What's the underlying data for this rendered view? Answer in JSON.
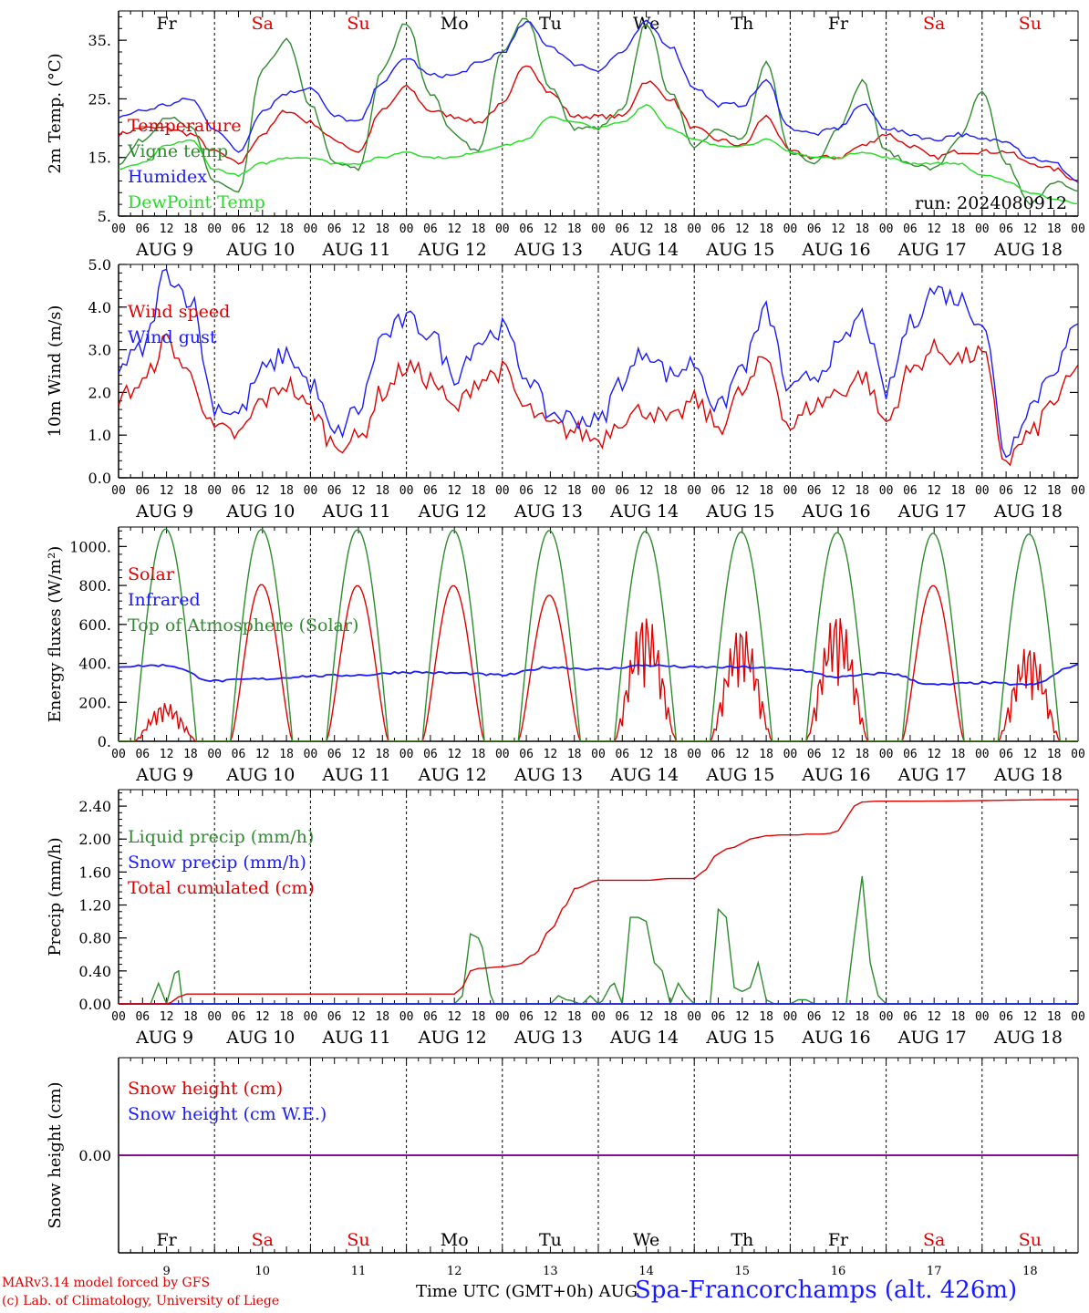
{
  "days": [
    "Fr",
    "Sa",
    "Su",
    "Mo",
    "Tu",
    "We",
    "Th",
    "Fr",
    "Sa",
    "Su"
  ],
  "day_colors": [
    "#000000",
    "#e00000",
    "#e00000",
    "#000000",
    "#000000",
    "#000000",
    "#000000",
    "#000000",
    "#e00000",
    "#e00000"
  ],
  "date_labels": [
    "AUG  9",
    "AUG 10",
    "AUG 11",
    "AUG 12",
    "AUG 13",
    "AUG 14",
    "AUG 15",
    "AUG 16",
    "AUG 17",
    "AUG 18"
  ],
  "bottom_date_labels": [
    "9",
    "10",
    "11",
    "12",
    "13",
    "14",
    "15",
    "16",
    "17",
    "18"
  ],
  "hour_labels": [
    "00",
    "06",
    "12",
    "18"
  ],
  "footer": {
    "model": "MARv3.14 model forced by GFS",
    "lab": "(c) Lab. of Climatology, University of Liege",
    "xlabel": "Time UTC (GMT+0h) AUG",
    "station": "Spa-Francorchamps (alt. 426m)"
  },
  "chart_data": [
    {
      "type": "line",
      "ylabel": "2m Temp. (°C)",
      "ylim": [
        5,
        40
      ],
      "yticks": [
        "5.",
        "15.",
        "25.",
        "35."
      ],
      "ytick_values": [
        5,
        15,
        25,
        35
      ],
      "annotation": "run: 2024080912",
      "x_unit": "hours since Aug 9 00 UTC",
      "series": [
        {
          "name": "Temperature",
          "color": "#e00000",
          "x": [
            0,
            6,
            12,
            18,
            24,
            30,
            36,
            42,
            48,
            54,
            60,
            66,
            72,
            78,
            84,
            90,
            96,
            102,
            108,
            114,
            120,
            126,
            132,
            138,
            144,
            150,
            156,
            162,
            168,
            174,
            180,
            186,
            192,
            198,
            204,
            210,
            216,
            222,
            228,
            234,
            240
          ],
          "values": [
            19,
            20,
            20,
            19,
            16,
            14,
            19,
            23,
            21,
            18,
            16,
            23,
            27,
            23,
            22,
            21,
            24,
            31,
            26,
            22,
            22,
            22,
            28,
            25,
            20,
            18,
            17,
            22,
            16,
            15,
            15,
            17,
            19,
            17,
            15,
            16,
            16,
            16,
            14,
            13,
            11
          ]
        },
        {
          "name": "Vigne temp",
          "color": "#2e8b2e",
          "x": [
            0,
            6,
            12,
            18,
            24,
            30,
            36,
            42,
            48,
            54,
            60,
            66,
            72,
            78,
            84,
            90,
            96,
            102,
            108,
            114,
            120,
            126,
            132,
            138,
            144,
            150,
            156,
            162,
            168,
            174,
            180,
            186,
            192,
            198,
            204,
            210,
            216,
            222,
            228,
            234,
            240
          ],
          "values": [
            14,
            18,
            22,
            20,
            11,
            9,
            30,
            35,
            24,
            14,
            13,
            30,
            38,
            26,
            19,
            16,
            33,
            39,
            27,
            20,
            20,
            23,
            38,
            26,
            17,
            20,
            18,
            31,
            16,
            14,
            20,
            28,
            16,
            14,
            13,
            18,
            26,
            14,
            7,
            11,
            9
          ]
        },
        {
          "name": "Humidex",
          "color": "#1a1aff",
          "x": [
            0,
            6,
            12,
            18,
            24,
            30,
            36,
            42,
            48,
            54,
            60,
            66,
            72,
            78,
            84,
            90,
            96,
            102,
            108,
            114,
            120,
            126,
            132,
            138,
            144,
            150,
            156,
            162,
            168,
            174,
            180,
            186,
            192,
            198,
            204,
            210,
            216,
            222,
            228,
            234,
            240
          ],
          "values": [
            22,
            23,
            24,
            25,
            20,
            16,
            23,
            26,
            27,
            22,
            21,
            28,
            32,
            29,
            29,
            31,
            33,
            38,
            34,
            31,
            30,
            33,
            38,
            34,
            27,
            24,
            24,
            28,
            20,
            19,
            20,
            24,
            20,
            19,
            18,
            19,
            18,
            18,
            15,
            14,
            11
          ]
        },
        {
          "name": "DewPoint Temp",
          "color": "#22dd22",
          "x": [
            0,
            6,
            12,
            18,
            24,
            30,
            36,
            42,
            48,
            54,
            60,
            66,
            72,
            78,
            84,
            90,
            96,
            102,
            108,
            114,
            120,
            126,
            132,
            138,
            144,
            150,
            156,
            162,
            168,
            174,
            180,
            186,
            192,
            198,
            204,
            210,
            216,
            222,
            228,
            234,
            240
          ],
          "values": [
            13,
            14,
            17,
            18,
            13,
            12,
            14,
            15,
            15,
            14,
            14,
            15,
            16,
            15,
            15,
            16,
            17,
            18,
            22,
            21,
            20,
            21,
            24,
            20,
            18,
            17,
            17,
            18,
            16,
            15,
            15,
            16,
            15,
            14,
            14,
            14,
            12,
            11,
            9,
            8,
            7
          ]
        }
      ]
    },
    {
      "type": "line",
      "ylabel": "10m Wind (m/s)",
      "ylim": [
        0,
        5
      ],
      "yticks": [
        "0.0",
        "1.0",
        "2.0",
        "3.0",
        "4.0",
        "5.0"
      ],
      "ytick_values": [
        0,
        1,
        2,
        3,
        4,
        5
      ],
      "x_unit": "hours since Aug 9 00 UTC",
      "series": [
        {
          "name": "Wind speed",
          "color": "#e00000",
          "x": [
            0,
            6,
            12,
            18,
            24,
            30,
            36,
            42,
            48,
            54,
            60,
            66,
            72,
            78,
            84,
            90,
            96,
            102,
            108,
            114,
            120,
            126,
            132,
            138,
            144,
            150,
            156,
            162,
            168,
            174,
            180,
            186,
            192,
            198,
            204,
            210,
            216,
            222,
            228,
            234,
            240
          ],
          "values": [
            1.9,
            2.2,
            3.2,
            2.4,
            1.1,
            1.0,
            1.8,
            2.2,
            1.6,
            0.8,
            0.9,
            2.0,
            2.6,
            2.3,
            1.6,
            2.3,
            2.5,
            1.6,
            1.2,
            1.1,
            0.9,
            1.4,
            1.6,
            1.3,
            1.8,
            1.2,
            2.0,
            2.8,
            1.2,
            1.7,
            2.0,
            2.4,
            1.3,
            2.5,
            3.0,
            2.8,
            2.9,
            0.4,
            1.0,
            1.8,
            2.5
          ]
        },
        {
          "name": "Wind gust",
          "color": "#1a1aff",
          "x": [
            0,
            6,
            12,
            18,
            24,
            30,
            36,
            42,
            48,
            54,
            60,
            66,
            72,
            78,
            84,
            90,
            96,
            102,
            108,
            114,
            120,
            126,
            132,
            138,
            144,
            150,
            156,
            162,
            168,
            174,
            180,
            186,
            192,
            198,
            204,
            210,
            216,
            222,
            228,
            234,
            240
          ],
          "values": [
            2.6,
            3.0,
            4.8,
            4.2,
            1.7,
            1.5,
            2.5,
            2.9,
            2.2,
            1.0,
            1.6,
            3.3,
            3.7,
            3.4,
            2.4,
            3.2,
            3.5,
            2.4,
            1.5,
            1.4,
            1.3,
            2.3,
            3.0,
            2.4,
            2.7,
            1.6,
            2.6,
            3.9,
            2.0,
            2.4,
            3.0,
            3.8,
            2.0,
            3.6,
            4.4,
            4.2,
            3.7,
            0.6,
            1.7,
            2.6,
            3.5
          ]
        }
      ]
    },
    {
      "type": "line",
      "ylabel": "Energy fluxes (W/m²)",
      "ylim": [
        0,
        1100
      ],
      "yticks": [
        "0.",
        "200.",
        "400.",
        "600.",
        "800.",
        "1000."
      ],
      "ytick_values": [
        0,
        200,
        400,
        600,
        800,
        1000
      ],
      "x_unit": "hours since Aug 9 00 UTC",
      "series": [
        {
          "name": "Solar",
          "color": "#e00000",
          "peaks": [
            200,
            805,
            800,
            800,
            750,
            660,
            600,
            670,
            800,
            500
          ]
        },
        {
          "name": "Infrared",
          "color": "#1a1aff",
          "x": [
            0,
            12,
            24,
            36,
            48,
            60,
            72,
            84,
            96,
            108,
            120,
            132,
            144,
            156,
            168,
            180,
            192,
            204,
            216,
            228,
            240
          ],
          "values": [
            385,
            390,
            310,
            320,
            335,
            340,
            355,
            350,
            340,
            380,
            370,
            390,
            380,
            380,
            370,
            330,
            350,
            290,
            300,
            290,
            390
          ]
        },
        {
          "name": "Top of Atmosphere (Solar)",
          "color": "#2e8b2e",
          "peaks": [
            1090,
            1088,
            1086,
            1084,
            1082,
            1078,
            1075,
            1072,
            1068,
            1064
          ]
        }
      ]
    },
    {
      "type": "line",
      "ylabel": "Precip (mm/h)",
      "ylim": [
        0,
        2.6
      ],
      "yticks": [
        "0.00",
        "0.40",
        "0.80",
        "1.20",
        "1.60",
        "2.00",
        "2.40"
      ],
      "ytick_values": [
        0,
        0.4,
        0.8,
        1.2,
        1.6,
        2.0,
        2.4
      ],
      "x_unit": "hours since Aug 9 00 UTC",
      "series": [
        {
          "name": "Liquid precip (mm/h)",
          "color": "#2e8b2e",
          "x": [
            0,
            8,
            10,
            12,
            14,
            15,
            16,
            18,
            70,
            84,
            86,
            88,
            90,
            94,
            100,
            102,
            104,
            108,
            110,
            112,
            116,
            118,
            120,
            124,
            126,
            128,
            130,
            132,
            134,
            136,
            138,
            140,
            142,
            144,
            146,
            148,
            150,
            152,
            154,
            156,
            158,
            160,
            162,
            164,
            166,
            168,
            170,
            172,
            174,
            180,
            182,
            184,
            186,
            188,
            190,
            192,
            200,
            240
          ],
          "values": [
            0,
            0,
            0.25,
            0,
            0.37,
            0.4,
            0,
            0,
            0,
            0,
            0.1,
            0.85,
            0.8,
            0,
            0,
            0,
            0,
            0,
            0.1,
            0.05,
            0,
            0.1,
            0,
            0.25,
            0,
            1.05,
            1.05,
            1.0,
            0.5,
            0.4,
            0,
            0.25,
            0.1,
            0,
            0,
            0,
            1.15,
            1.05,
            0.2,
            0.15,
            0.2,
            0.5,
            0.05,
            0,
            0,
            0,
            0.05,
            0.05,
            0,
            0,
            0,
            0.8,
            1.55,
            0.5,
            0.1,
            0,
            0,
            0
          ]
        },
        {
          "name": "Snow precip (mm/h)",
          "color": "#1a1aff",
          "x": [
            0,
            240
          ],
          "values": [
            0,
            0
          ]
        },
        {
          "name": "Total cumulated (cm)",
          "color": "#e00000",
          "x": [
            0,
            12,
            16,
            17,
            84,
            86,
            88,
            90,
            96,
            100,
            104,
            108,
            112,
            114,
            120,
            126,
            132,
            138,
            144,
            146,
            150,
            152,
            154,
            156,
            158,
            160,
            162,
            166,
            170,
            172,
            174,
            176,
            178,
            180,
            182,
            184,
            186,
            190,
            200,
            240
          ],
          "values": [
            0,
            0,
            0.1,
            0.12,
            0.12,
            0.2,
            0.4,
            0.43,
            0.45,
            0.48,
            0.6,
            0.9,
            1.2,
            1.4,
            1.5,
            1.5,
            1.5,
            1.52,
            1.52,
            1.6,
            1.82,
            1.88,
            1.9,
            1.95,
            2.0,
            2.02,
            2.04,
            2.05,
            2.05,
            2.06,
            2.06,
            2.06,
            2.07,
            2.1,
            2.25,
            2.4,
            2.45,
            2.46,
            2.46,
            2.48
          ]
        }
      ]
    },
    {
      "type": "line",
      "ylabel": "Snow height (cm)",
      "ylim": [
        -1,
        1
      ],
      "yticks": [
        "0.00"
      ],
      "ytick_values": [
        0
      ],
      "x_unit": "hours since Aug 9 00 UTC",
      "series": [
        {
          "name": "Snow height (cm)",
          "color": "#e00000",
          "x": [
            0,
            240
          ],
          "values": [
            0,
            0
          ]
        },
        {
          "name": "Snow height (cm W.E.)",
          "color": "#1a1aff",
          "x": [
            0,
            240
          ],
          "values": [
            0,
            0
          ]
        }
      ]
    }
  ]
}
